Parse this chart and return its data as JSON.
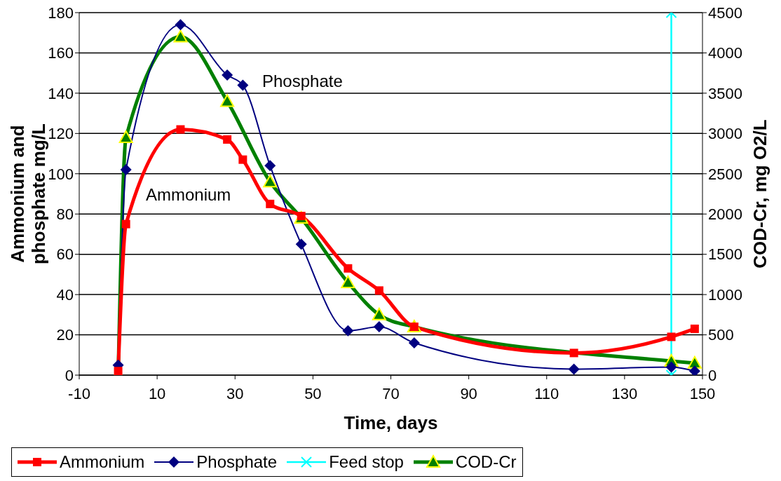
{
  "chart_data": {
    "type": "line",
    "xlabel": "Time, days",
    "ylabel": "Ammonium and phosphate mg/L",
    "y2label": "COD-Cr, mg O2/L",
    "xlim": [
      -10,
      150
    ],
    "xticks": [
      -10,
      10,
      30,
      50,
      70,
      90,
      110,
      130,
      150
    ],
    "ylim": [
      0,
      180
    ],
    "yticks": [
      0,
      20,
      40,
      60,
      80,
      100,
      120,
      140,
      160,
      180
    ],
    "y2lim": [
      0,
      4500
    ],
    "y2ticks": [
      0,
      500,
      1000,
      1500,
      2000,
      2500,
      3000,
      3500,
      4000,
      4500
    ],
    "grid": "y",
    "legend": "bottom",
    "series": [
      {
        "name": "Ammonium",
        "color": "#ff0000",
        "marker": "square",
        "x": [
          0,
          2,
          16,
          28,
          32,
          39,
          47,
          59,
          67,
          76,
          117,
          142,
          148
        ],
        "values": [
          2,
          75,
          122,
          117,
          107,
          85,
          79,
          53,
          42,
          24,
          11,
          19,
          23
        ]
      },
      {
        "name": "Phosphate",
        "color": "#000080",
        "marker": "diamond",
        "x": [
          0,
          2,
          16,
          28,
          32,
          39,
          47,
          59,
          67,
          76,
          117,
          142,
          148
        ],
        "values": [
          5,
          102,
          174,
          149,
          144,
          104,
          65,
          22,
          24,
          16,
          3,
          4,
          2
        ]
      },
      {
        "name": "Feed stop",
        "color": "#00ffff",
        "marker": "cross",
        "x": [
          142,
          142
        ],
        "values": [
          0,
          180
        ]
      },
      {
        "name": "COD-Cr",
        "color": "#008000",
        "marker": "triangle",
        "axis": "y2",
        "x": [
          0,
          2,
          16,
          28,
          39,
          47,
          59,
          67,
          76,
          142,
          148
        ],
        "values": [
          0,
          2950,
          4200,
          3400,
          2400,
          1950,
          1150,
          750,
          600,
          175,
          150
        ]
      }
    ],
    "annotations": [
      "Phosphate",
      "Ammonium"
    ]
  }
}
